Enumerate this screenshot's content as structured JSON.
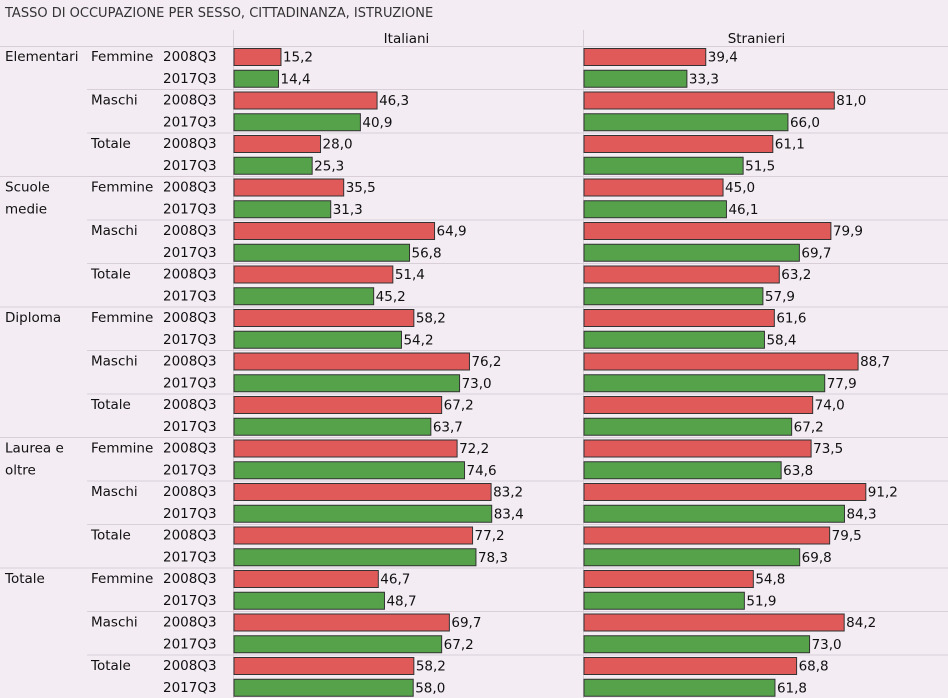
{
  "title": "TASSO DI OCCUPAZIONE PER SESSO, CITTADINANZA, ISTRUZIONE",
  "colors": {
    "2008Q3": "#e05a5a",
    "2017Q3": "#55a24a",
    "border": "#333333",
    "background": "#f3ecf3",
    "gridline": "#d9cfd9"
  },
  "chart_data": {
    "type": "bar",
    "orientation": "horizontal",
    "panels": [
      "Italiani",
      "Stranieri"
    ],
    "periods": [
      "2008Q3",
      "2017Q3"
    ],
    "xlim": [
      0,
      100
    ],
    "groups": [
      {
        "education": "Elementari",
        "label_lines": [
          "Elementari"
        ],
        "sexes": [
          {
            "sex": "Femmine",
            "italiani": [
              15.2,
              14.4
            ],
            "stranieri": [
              39.4,
              33.3
            ]
          },
          {
            "sex": "Maschi",
            "italiani": [
              46.3,
              40.9
            ],
            "stranieri": [
              81.0,
              66.0
            ]
          },
          {
            "sex": "Totale",
            "italiani": [
              28.0,
              25.3
            ],
            "stranieri": [
              61.1,
              51.5
            ]
          }
        ]
      },
      {
        "education": "Scuole medie",
        "label_lines": [
          "Scuole",
          "medie"
        ],
        "sexes": [
          {
            "sex": "Femmine",
            "italiani": [
              35.5,
              31.3
            ],
            "stranieri": [
              45.0,
              46.1
            ]
          },
          {
            "sex": "Maschi",
            "italiani": [
              64.9,
              56.8
            ],
            "stranieri": [
              79.9,
              69.7
            ]
          },
          {
            "sex": "Totale",
            "italiani": [
              51.4,
              45.2
            ],
            "stranieri": [
              63.2,
              57.9
            ]
          }
        ]
      },
      {
        "education": "Diploma",
        "label_lines": [
          "Diploma"
        ],
        "sexes": [
          {
            "sex": "Femmine",
            "italiani": [
              58.2,
              54.2
            ],
            "stranieri": [
              61.6,
              58.4
            ]
          },
          {
            "sex": "Maschi",
            "italiani": [
              76.2,
              73.0
            ],
            "stranieri": [
              88.7,
              77.9
            ]
          },
          {
            "sex": "Totale",
            "italiani": [
              67.2,
              63.7
            ],
            "stranieri": [
              74.0,
              67.2
            ]
          }
        ]
      },
      {
        "education": "Laurea e oltre",
        "label_lines": [
          "Laurea e",
          "oltre"
        ],
        "sexes": [
          {
            "sex": "Femmine",
            "italiani": [
              72.2,
              74.6
            ],
            "stranieri": [
              73.5,
              63.8
            ]
          },
          {
            "sex": "Maschi",
            "italiani": [
              83.2,
              83.4
            ],
            "stranieri": [
              91.2,
              84.3
            ]
          },
          {
            "sex": "Totale",
            "italiani": [
              77.2,
              78.3
            ],
            "stranieri": [
              79.5,
              69.8
            ]
          }
        ]
      },
      {
        "education": "Totale",
        "label_lines": [
          "Totale"
        ],
        "sexes": [
          {
            "sex": "Femmine",
            "italiani": [
              46.7,
              48.7
            ],
            "stranieri": [
              54.8,
              51.9
            ]
          },
          {
            "sex": "Maschi",
            "italiani": [
              69.7,
              67.2
            ],
            "stranieri": [
              84.2,
              73.0
            ]
          },
          {
            "sex": "Totale",
            "italiani": [
              58.2,
              58.0
            ],
            "stranieri": [
              68.8,
              61.8
            ]
          }
        ]
      }
    ]
  }
}
